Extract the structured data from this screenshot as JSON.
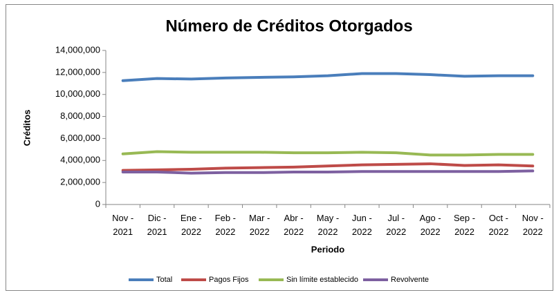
{
  "chart_data": {
    "type": "line",
    "title": "Número de Créditos Otorgados",
    "xlabel": "Periodo",
    "ylabel": "Créditos",
    "categories": [
      "Nov - 2021",
      "Dic - 2021",
      "Ene - 2022",
      "Feb - 2022",
      "Mar - 2022",
      "Abr - 2022",
      "May - 2022",
      "Jun - 2022",
      "Jul - 2022",
      "Ago - 2022",
      "Sep - 2022",
      "Oct - 2022",
      "Nov - 2022"
    ],
    "series": [
      {
        "name": "Total",
        "color": "#4a7ebb",
        "values": [
          11250000,
          11450000,
          11400000,
          11500000,
          11550000,
          11600000,
          11700000,
          11900000,
          11900000,
          11800000,
          11650000,
          11700000,
          11700000
        ]
      },
      {
        "name": "Pagos Fijos",
        "color": "#be4b48",
        "values": [
          3100000,
          3150000,
          3200000,
          3300000,
          3350000,
          3400000,
          3500000,
          3600000,
          3650000,
          3700000,
          3550000,
          3600000,
          3500000
        ]
      },
      {
        "name": "Sin límite establecido",
        "color": "#98b954",
        "values": [
          4600000,
          4800000,
          4750000,
          4750000,
          4750000,
          4700000,
          4700000,
          4750000,
          4700000,
          4500000,
          4500000,
          4550000,
          4550000
        ]
      },
      {
        "name": "Revolvente",
        "color": "#7d60a0",
        "values": [
          2950000,
          2950000,
          2850000,
          2900000,
          2900000,
          2950000,
          2950000,
          3000000,
          3000000,
          3000000,
          3000000,
          3000000,
          3050000
        ]
      }
    ],
    "ylim": [
      0,
      14000000
    ],
    "yticks": [
      0,
      {
        "value": 2000000,
        "label": "2,000,000"
      },
      {
        "value": 4000000,
        "label": "4,000,000"
      },
      {
        "value": 6000000,
        "label": "6,000,000"
      },
      {
        "value": 8000000,
        "label": "8,000,000"
      },
      {
        "value": 10000000,
        "label": "10,000,000"
      },
      {
        "value": 12000000,
        "label": "12,000,000"
      },
      {
        "value": 14000000,
        "label": "14,000,000"
      }
    ],
    "grid": false,
    "legend": "bottom"
  }
}
